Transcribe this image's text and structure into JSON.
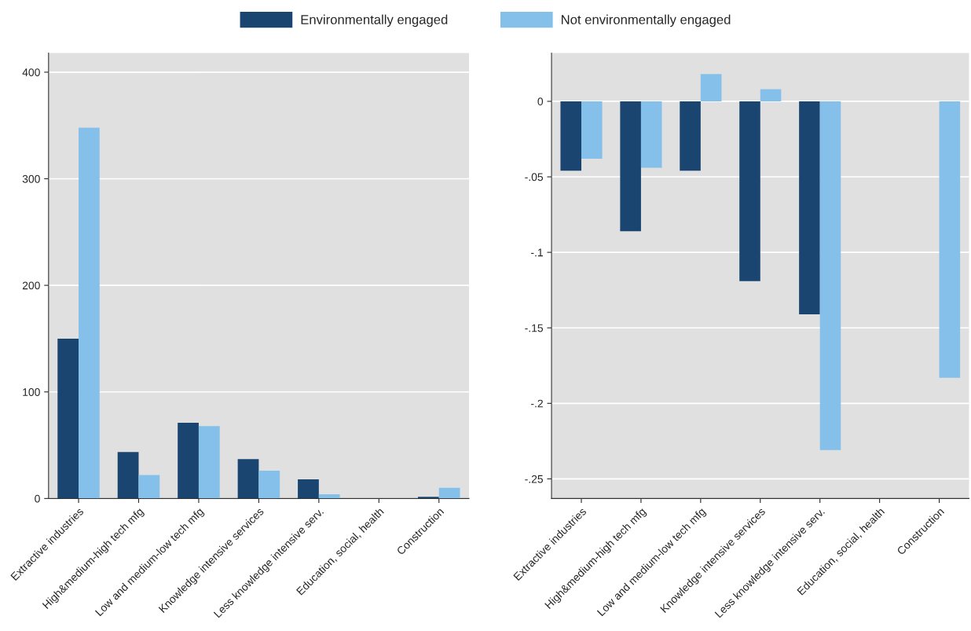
{
  "chart_data": [
    {
      "type": "bar",
      "categories": [
        "Extractive industries",
        "High&medium-high tech mfg",
        "Low and medium-low tech mfg",
        "Knowledge intensive services",
        "Less knowledge intensive serv.",
        "Education, social, health",
        "Construction"
      ],
      "series": [
        {
          "name": "Environmentally engaged",
          "color": "#1a4570",
          "values": [
            150,
            43.5,
            71,
            37,
            18,
            null,
            1.5
          ]
        },
        {
          "name": "Not environmentally engaged",
          "color": "#85c0ea",
          "values": [
            348,
            22,
            68,
            26,
            4,
            null,
            10
          ]
        }
      ],
      "ylim": [
        0,
        418
      ],
      "yticks": [
        0,
        100,
        200,
        300,
        400
      ],
      "grid": "y",
      "legend": "top"
    },
    {
      "type": "bar",
      "categories": [
        "Extractive industries",
        "High&medium-high tech mfg",
        "Low and medium-low tech mfg",
        "Knowledge intensive services",
        "Less knowledge intensive serv.",
        "Education, social, health",
        "Construction"
      ],
      "series": [
        {
          "color": "#1a4570",
          "values": [
            -0.046,
            -0.086,
            -0.046,
            -0.119,
            -0.141,
            null,
            null
          ]
        },
        {
          "color": "#85c0ea",
          "values": [
            -0.038,
            -0.044,
            0.018,
            0.008,
            -0.231,
            null,
            -0.183
          ]
        }
      ],
      "ylim": [
        -0.263,
        0.032
      ],
      "yticks": [
        {
          "value": -0.25,
          "label": "-.25"
        },
        {
          "value": -0.2,
          "label": "-.2"
        },
        {
          "value": -0.15,
          "label": "-.15"
        },
        {
          "value": -0.1,
          "label": "-.1"
        },
        {
          "value": -0.05,
          "label": "-.05"
        },
        {
          "value": 0,
          "label": "0"
        }
      ],
      "grid": "y"
    }
  ]
}
